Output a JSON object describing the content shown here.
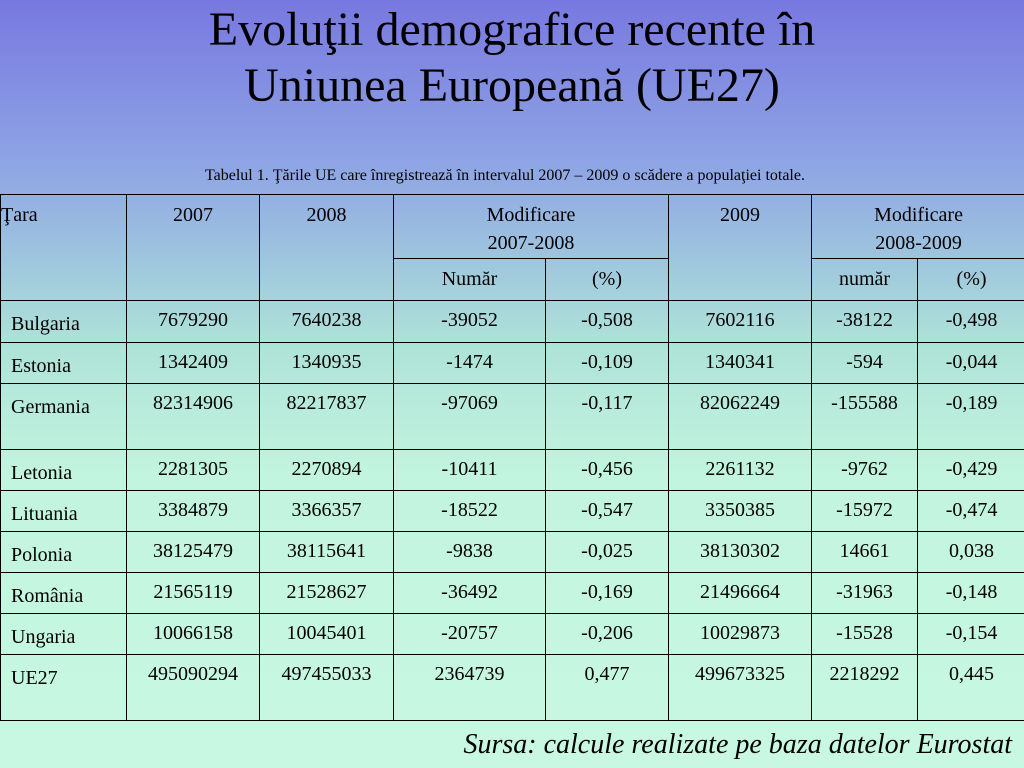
{
  "title": {
    "line1": "Evoluţii demografice recente în",
    "line2": "Uniunea Europeană (UE27)"
  },
  "caption": "Tabelul 1. Ţările UE care înregistrează în intervalul 2007 – 2009 o scădere a populaţiei totale.",
  "table": {
    "headers": {
      "country": "Ţara",
      "y2007": "2007",
      "y2008": "2008",
      "mod1_line1": "Modificare",
      "mod1_line2": "2007-2008",
      "y2009": "2009",
      "mod2_line1": "Modificare",
      "mod2_line2": "2008-2009",
      "mod1_num": "Număr",
      "mod1_pct": "(%)",
      "mod2_num": "număr",
      "mod2_pct": "(%)"
    },
    "rows": [
      {
        "country": "Bulgaria",
        "y2007": "7679290",
        "y2008": "7640238",
        "d1": "-39052",
        "p1": "-0,508",
        "y2009": "7602116",
        "d2": "-38122",
        "p2": "-0,498"
      },
      {
        "country": "Estonia",
        "y2007": "1342409",
        "y2008": "1340935",
        "d1": "-1474",
        "p1": "-0,109",
        "y2009": "1340341",
        "d2": "-594",
        "p2": "-0,044"
      },
      {
        "country": "Germania",
        "y2007": "82314906",
        "y2008": "82217837",
        "d1": "-97069",
        "p1": "-0,117",
        "y2009": "82062249",
        "d2": "-155588",
        "p2": "-0,189"
      },
      {
        "country": "Letonia",
        "y2007": "2281305",
        "y2008": "2270894",
        "d1": "-10411",
        "p1": "-0,456",
        "y2009": "2261132",
        "d2": "-9762",
        "p2": "-0,429"
      },
      {
        "country": "Lituania",
        "y2007": "3384879",
        "y2008": "3366357",
        "d1": "-18522",
        "p1": "-0,547",
        "y2009": "3350385",
        "d2": "-15972",
        "p2": "-0,474"
      },
      {
        "country": "Polonia",
        "y2007": "38125479",
        "y2008": "38115641",
        "d1": "-9838",
        "p1": "-0,025",
        "y2009": "38130302",
        "d2": "14661",
        "p2": "0,038"
      },
      {
        "country": "România",
        "y2007": "21565119",
        "y2008": "21528627",
        "d1": "-36492",
        "p1": "-0,169",
        "y2009": "21496664",
        "d2": "-31963",
        "p2": "-0,148"
      },
      {
        "country": "Ungaria",
        "y2007": "10066158",
        "y2008": "10045401",
        "d1": "-20757",
        "p1": "-0,206",
        "y2009": "10029873",
        "d2": "-15528",
        "p2": "-0,154"
      },
      {
        "country": "UE27",
        "y2007": "495090294",
        "y2008": "497455033",
        "d1": "2364739",
        "p1": "0,477",
        "y2009": "499673325",
        "d2": "2218292",
        "p2": "0,445"
      }
    ]
  },
  "source": "Sursa: calcule realizate pe baza datelor Eurostat"
}
